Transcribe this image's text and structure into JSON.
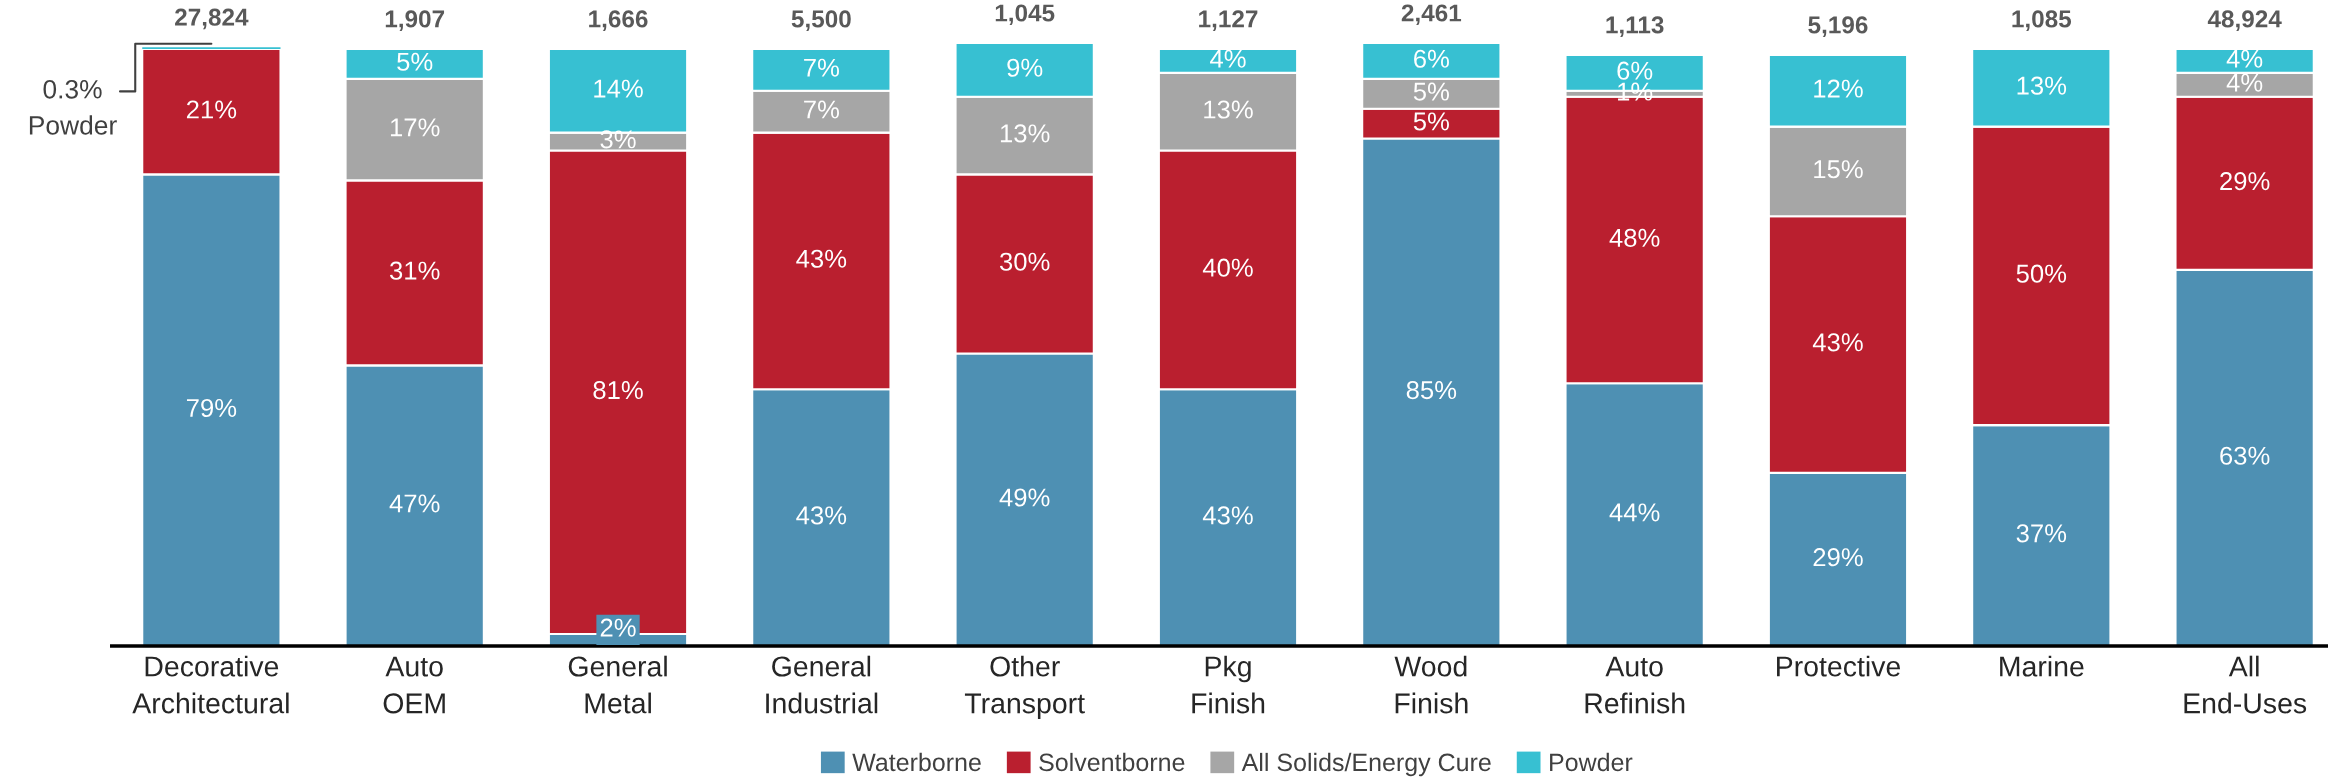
{
  "chart_data": {
    "type": "bar",
    "stacked": true,
    "tick_labels": "x",
    "legend": "bottom",
    "categories": [
      "Decorative Architectural",
      "Auto OEM",
      "General Metal",
      "General Industrial",
      "Other Transport",
      "Pkg Finish",
      "Wood Finish",
      "Auto Refinish",
      "Protective",
      "Marine",
      "All End-Uses"
    ],
    "series": [
      {
        "name": "Waterborne",
        "color": "#4e90b3",
        "values": [
          79,
          47,
          2,
          43,
          49,
          43,
          85,
          44,
          29,
          37,
          63
        ],
        "value_labels": [
          "79%",
          "47%",
          "2%",
          "43%",
          "49%",
          "43%",
          "85%",
          "44%",
          "29%",
          "37%",
          "63%"
        ]
      },
      {
        "name": "Solventborne",
        "color": "#ba1f2f",
        "values": [
          21,
          31,
          81,
          43,
          30,
          40,
          5,
          48,
          43,
          50,
          29
        ],
        "value_labels": [
          "21%",
          "31%",
          "81%",
          "43%",
          "30%",
          "40%",
          "5%",
          "48%",
          "43%",
          "50%",
          "29%"
        ]
      },
      {
        "name": "All Solids/Energy Cure",
        "color": "#a6a6a6",
        "values": [
          0,
          17,
          3,
          7,
          13,
          13,
          5,
          1,
          15,
          0,
          4
        ],
        "value_labels": [
          null,
          "17%",
          "3%",
          "7%",
          "13%",
          "13%",
          "5%",
          "1%",
          "15%",
          null,
          "4%"
        ]
      },
      {
        "name": "Powder",
        "color": "#37c0d2",
        "values": [
          0.3,
          5,
          14,
          7,
          9,
          4,
          6,
          6,
          12,
          13,
          4
        ],
        "value_labels": [
          null,
          "5%",
          "14%",
          "7%",
          "9%",
          "4%",
          "6%",
          "6%",
          "12%",
          "13%",
          "4%"
        ]
      }
    ],
    "annotations": [
      {
        "text": "27,824",
        "x": "Decorative Architectural",
        "y": 100.3
      },
      {
        "text": "1,907",
        "x": "Auto OEM",
        "y": 100
      },
      {
        "text": "1,666",
        "x": "General Metal",
        "y": 100
      },
      {
        "text": "5,500",
        "x": "General Industrial",
        "y": 100
      },
      {
        "text": "1,045",
        "x": "Other Transport",
        "y": 101
      },
      {
        "text": "1,127",
        "x": "Pkg Finish",
        "y": 100
      },
      {
        "text": "2,461",
        "x": "Wood Finish",
        "y": 101
      },
      {
        "text": "1,113",
        "x": "Auto Refinish",
        "y": 99
      },
      {
        "text": "5,196",
        "x": "Protective",
        "y": 99
      },
      {
        "text": "1,085",
        "x": "Marine",
        "y": 100
      },
      {
        "text": "48,924",
        "x": "All End-Uses",
        "y": 100
      },
      {
        "text": "0.3% Powder",
        "x": "Decorative Architectural",
        "y": 100.3
      }
    ]
  }
}
